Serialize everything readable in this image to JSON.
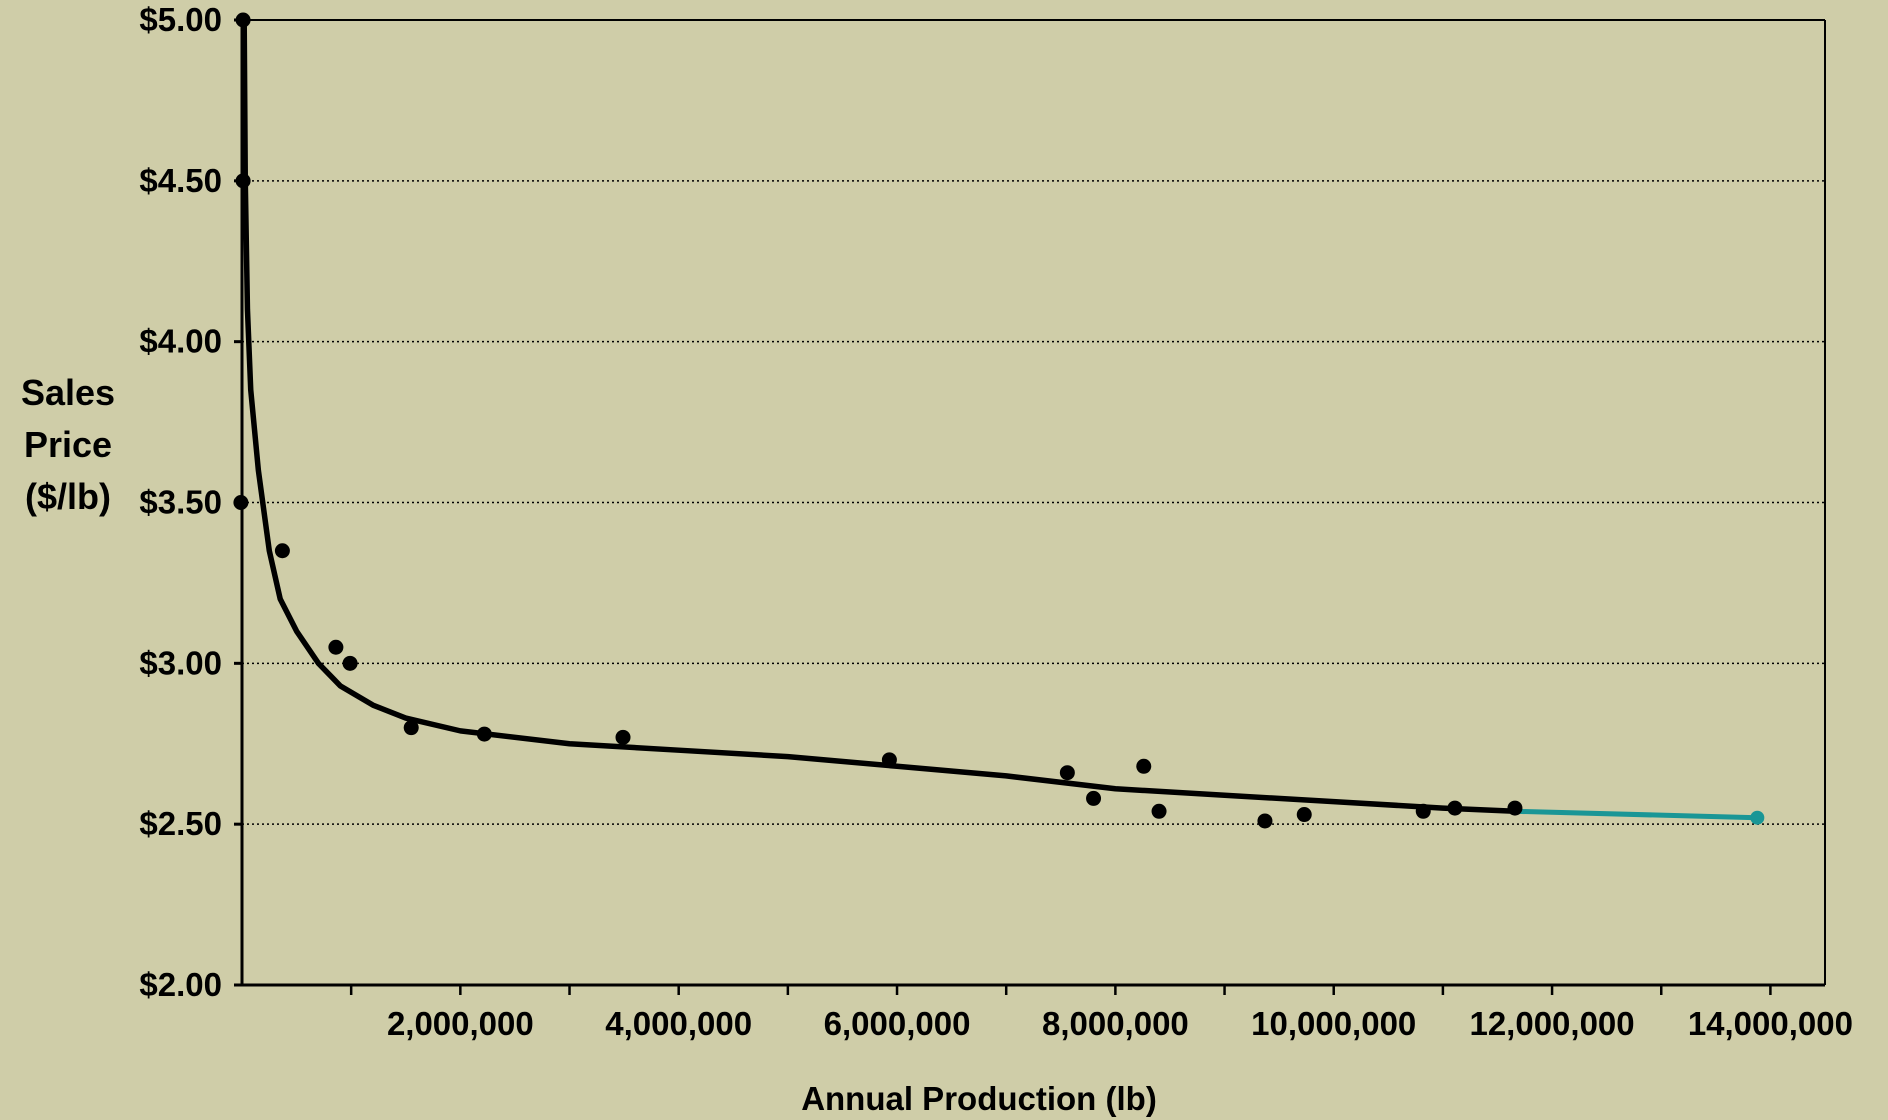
{
  "chart_data": {
    "type": "scatter",
    "title": "",
    "xlabel": "Annual Production (lb)",
    "ylabel": [
      "Sales",
      "Price",
      "($/lb)"
    ],
    "xlim": [
      0,
      14500000
    ],
    "ylim": [
      2.0,
      5.0
    ],
    "x_ticks": [
      2000000,
      4000000,
      6000000,
      8000000,
      10000000,
      12000000,
      14000000
    ],
    "x_tick_labels": [
      "2,000,000",
      "4,000,000",
      "6,000,000",
      "8,000,000",
      "10,000,000",
      "12,000,000",
      "14,000,000"
    ],
    "y_ticks": [
      2.0,
      2.5,
      3.0,
      3.5,
      4.0,
      4.5,
      5.0
    ],
    "y_tick_labels": [
      "$2.00",
      "$2.50",
      "$3.00",
      "$3.50",
      "$4.00",
      "$4.50",
      "$5.00"
    ],
    "grid": "horizontal dotted",
    "colors": {
      "background": "#cfcda8",
      "points": "#000000",
      "trend": "#000000",
      "extension": "#1a9696"
    },
    "series": [
      {
        "type": "scatter",
        "values": [
          [
            10000,
            5.0
          ],
          [
            10000,
            4.5
          ],
          [
            -10000,
            3.5
          ],
          [
            370000,
            3.35
          ],
          [
            860000,
            3.05
          ],
          [
            990000,
            3.0
          ],
          [
            1550000,
            2.8
          ],
          [
            2220000,
            2.78
          ],
          [
            3490000,
            2.77
          ],
          [
            5930000,
            2.7
          ],
          [
            7560000,
            2.66
          ],
          [
            7800000,
            2.58
          ],
          [
            8260000,
            2.68
          ],
          [
            8400000,
            2.54
          ],
          [
            9370000,
            2.51
          ],
          [
            9730000,
            2.53
          ],
          [
            10820000,
            2.54
          ],
          [
            11110000,
            2.55
          ],
          [
            11660000,
            2.55
          ]
        ]
      },
      {
        "type": "line",
        "values": [
          [
            20000,
            5.0
          ],
          [
            30000,
            4.5
          ],
          [
            50000,
            4.1
          ],
          [
            80000,
            3.85
          ],
          [
            150000,
            3.6
          ],
          [
            250000,
            3.35
          ],
          [
            350000,
            3.2
          ],
          [
            500000,
            3.1
          ],
          [
            700000,
            3.0
          ],
          [
            900000,
            2.93
          ],
          [
            1200000,
            2.87
          ],
          [
            1500000,
            2.83
          ],
          [
            2000000,
            2.79
          ],
          [
            3000000,
            2.75
          ],
          [
            4000000,
            2.73
          ],
          [
            5000000,
            2.71
          ],
          [
            6000000,
            2.68
          ],
          [
            7000000,
            2.65
          ],
          [
            8000000,
            2.61
          ],
          [
            9000000,
            2.59
          ],
          [
            10000000,
            2.57
          ],
          [
            11000000,
            2.55
          ],
          [
            11660000,
            2.54
          ]
        ]
      },
      {
        "type": "line",
        "values": [
          [
            11660000,
            2.54
          ],
          [
            13880000,
            2.52
          ]
        ],
        "end_marker": true
      }
    ]
  }
}
